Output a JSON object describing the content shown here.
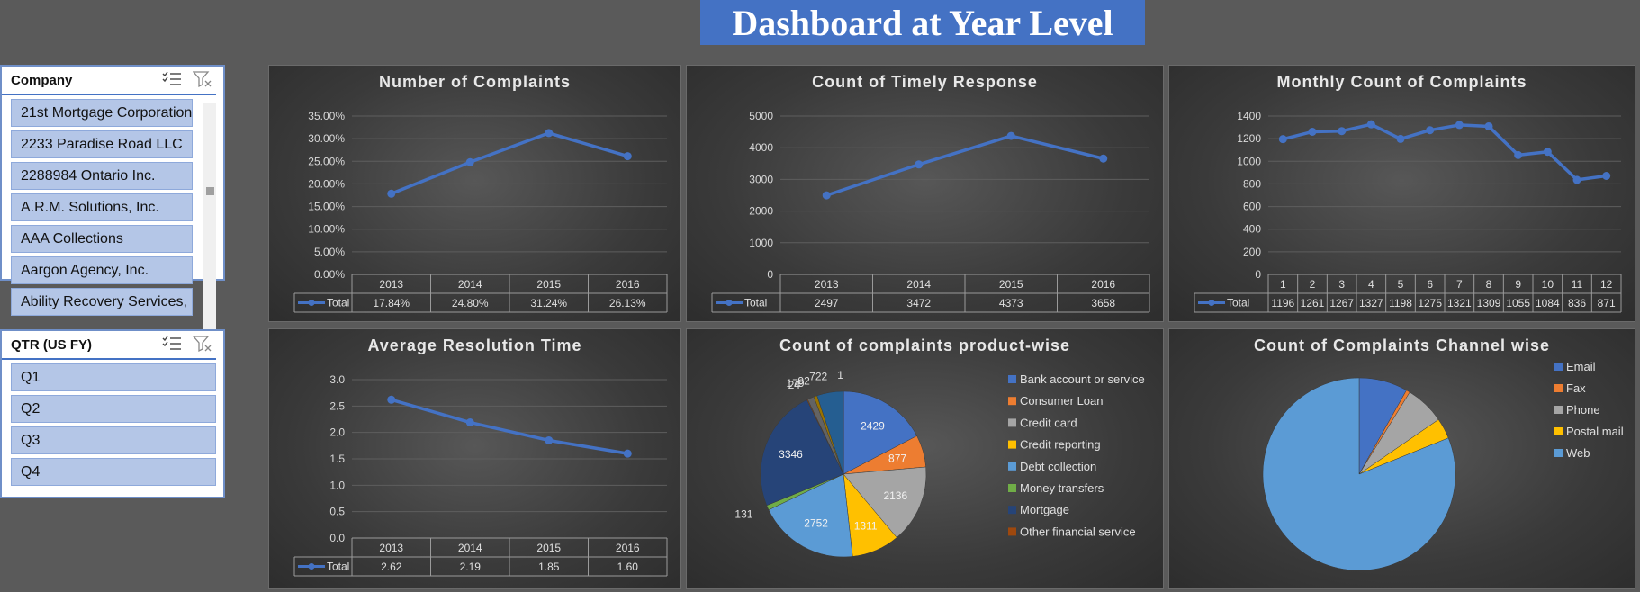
{
  "title": "Dashboard at Year Level",
  "slicers": {
    "company": {
      "header": "Company",
      "items": [
        "21st Mortgage Corporation",
        "2233 Paradise Road LLC",
        "2288984 Ontario Inc.",
        "A.R.M. Solutions, Inc.",
        "AAA Collections",
        "Aargon Agency, Inc.",
        "Ability Recovery Services, LLC"
      ]
    },
    "qtr": {
      "header": "QTR (US FY)",
      "items": [
        "Q1",
        "Q2",
        "Q3",
        "Q4"
      ]
    }
  },
  "icons": [
    "multi-select-icon",
    "clear-filter-icon",
    "legend-line-marker-icon"
  ],
  "colors": {
    "series": "#4472c4",
    "panel": "#404040",
    "banner": "#4472c4",
    "slicer_item": "#b4c6e7"
  },
  "chart_data": [
    {
      "id": "complaints",
      "type": "line",
      "title": "Number of Complaints",
      "categories": [
        "2013",
        "2014",
        "2015",
        "2016"
      ],
      "series": [
        {
          "name": "Total",
          "values": [
            17.84,
            24.8,
            31.24,
            26.13
          ],
          "labels": [
            "17.84%",
            "24.80%",
            "31.24%",
            "26.13%"
          ]
        }
      ],
      "yticks": [
        "0.00%",
        "5.00%",
        "10.00%",
        "15.00%",
        "20.00%",
        "25.00%",
        "30.00%",
        "35.00%"
      ],
      "ylim": [
        0,
        35
      ],
      "grid": true,
      "data_table": true
    },
    {
      "id": "timely",
      "type": "line",
      "title": "Count of Timely Response",
      "categories": [
        "2013",
        "2014",
        "2015",
        "2016"
      ],
      "series": [
        {
          "name": "Total",
          "values": [
            2497,
            3472,
            4373,
            3658
          ],
          "labels": [
            "2497",
            "3472",
            "4373",
            "3658"
          ]
        }
      ],
      "yticks": [
        "0",
        "1000",
        "2000",
        "3000",
        "4000",
        "5000"
      ],
      "ylim": [
        0,
        5000
      ],
      "grid": true,
      "data_table": true
    },
    {
      "id": "monthly",
      "type": "line",
      "title": "Monthly Count of Complaints",
      "categories": [
        "1",
        "2",
        "3",
        "4",
        "5",
        "6",
        "7",
        "8",
        "9",
        "10",
        "11",
        "12"
      ],
      "series": [
        {
          "name": "Total",
          "values": [
            1196,
            1261,
            1267,
            1327,
            1198,
            1275,
            1321,
            1309,
            1055,
            1084,
            836,
            871
          ],
          "labels": [
            "1196",
            "1261",
            "1267",
            "1327",
            "1198",
            "1275",
            "1321",
            "1309",
            "1055",
            "1084",
            "836",
            "871"
          ]
        }
      ],
      "yticks": [
        "0",
        "200",
        "400",
        "600",
        "800",
        "1000",
        "1200",
        "1400"
      ],
      "ylim": [
        0,
        1400
      ],
      "grid": true,
      "data_table": true
    },
    {
      "id": "resolution",
      "type": "line",
      "title": "Average Resolution Time",
      "categories": [
        "2013",
        "2014",
        "2015",
        "2016"
      ],
      "series": [
        {
          "name": "Total",
          "values": [
            2.62,
            2.19,
            1.85,
            1.6
          ],
          "labels": [
            "2.62",
            "2.19",
            "1.85",
            "1.60"
          ]
        }
      ],
      "yticks": [
        "0.0",
        "0.5",
        "1.0",
        "1.5",
        "2.0",
        "2.5",
        "3.0"
      ],
      "ylim": [
        0,
        3
      ],
      "grid": true,
      "data_table": true
    },
    {
      "id": "product",
      "type": "pie",
      "title": "Count of complaints product-wise",
      "legend_position": "right",
      "slices": [
        {
          "name": "Bank account or service",
          "value": 2429,
          "label": "2429",
          "color": "#4472c4"
        },
        {
          "name": "Consumer Loan",
          "value": 877,
          "label": "877",
          "color": "#ed7d31"
        },
        {
          "name": "Credit card",
          "value": 2136,
          "label": "2136",
          "color": "#a5a5a5"
        },
        {
          "name": "Credit reporting",
          "value": 1311,
          "label": "1311",
          "color": "#ffc000"
        },
        {
          "name": "Debt collection",
          "value": 2752,
          "label": "2752",
          "color": "#5b9bd5"
        },
        {
          "name": "Money transfers",
          "value": 131,
          "label": "131",
          "color": "#70ad47"
        },
        {
          "name": "Mortgage",
          "value": 3346,
          "label": "3346",
          "color": "#264478"
        },
        {
          "name": "Other financial service",
          "value": 24,
          "label": "24",
          "color": "#9e480e"
        },
        {
          "name": "",
          "value": 179,
          "label": "179",
          "color": "#636363"
        },
        {
          "name": "",
          "value": 92,
          "label": "92",
          "color": "#997300"
        },
        {
          "name": "",
          "value": 722,
          "label": "722",
          "color": "#255e91"
        },
        {
          "name": "",
          "value": 1,
          "label": "1",
          "color": "#43682b"
        }
      ]
    },
    {
      "id": "channel",
      "type": "pie",
      "title": "Count of Complaints Channel wise",
      "legend_position": "right",
      "slices": [
        {
          "name": "Email",
          "value": 1300,
          "color": "#4472c4"
        },
        {
          "name": "Fax",
          "value": 100,
          "color": "#ed7d31"
        },
        {
          "name": "Phone",
          "value": 1050,
          "color": "#a5a5a5"
        },
        {
          "name": "Postal mail",
          "value": 550,
          "color": "#ffc000"
        },
        {
          "name": "Web",
          "value": 12900,
          "color": "#5b9bd5"
        }
      ]
    }
  ]
}
